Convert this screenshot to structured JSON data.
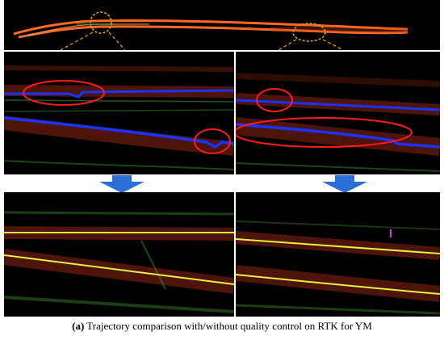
{
  "figure": {
    "caption_label": "(a)",
    "caption_text": " Trajectory comparison with/without quality control on RTK for YM"
  },
  "colors": {
    "pointcloud_red": "#e03a1a",
    "pointcloud_orange": "#ff6a20",
    "pointcloud_green": "#3c8a2a",
    "trajectory_blue": "#1a33ff",
    "trajectory_yellow": "#e8f040",
    "highlight_circle": "#ff1a1a",
    "arrow_blue": "#2b6fd6",
    "divider": "#ffffff"
  }
}
